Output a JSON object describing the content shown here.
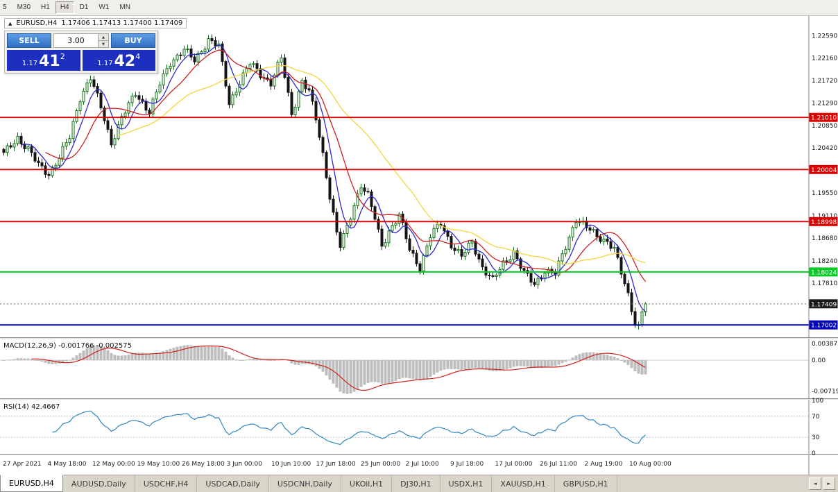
{
  "toolbar": {
    "timeframes": [
      "5",
      "M30",
      "H1",
      "H4",
      "D1",
      "W1",
      "MN"
    ],
    "active": "H4"
  },
  "symbol_overlay": {
    "symbol": "EURUSD,H4",
    "ohlc": "1.17406 1.17413 1.17400 1.17409"
  },
  "trade_panel": {
    "sell_label": "SELL",
    "buy_label": "BUY",
    "lot_value": "3.00",
    "sell_price": {
      "small": "1.17",
      "big": "41",
      "sup": "2"
    },
    "buy_price": {
      "small": "1.17",
      "big": "42",
      "sup": "4"
    }
  },
  "chart_data": {
    "type": "candlestick",
    "symbol": "EURUSD",
    "timeframe": "H4",
    "price_range": [
      1.1679,
      1.2297
    ],
    "y_axis_ticks": [
      "1.22590",
      "1.22160",
      "1.21720",
      "1.21290",
      "1.20850",
      "1.20420",
      "1.19550",
      "1.19110",
      "1.18680",
      "1.18240",
      "1.17810"
    ],
    "num_candles": 186,
    "last_close": 1.17409,
    "price_path_anchors": [
      [
        0,
        1.203
      ],
      [
        4,
        1.2062
      ],
      [
        7,
        1.204
      ],
      [
        10,
        1.2008
      ],
      [
        13,
        1.1992
      ],
      [
        16,
        1.2025
      ],
      [
        19,
        1.2062
      ],
      [
        22,
        1.214
      ],
      [
        25,
        1.2178
      ],
      [
        28,
        1.212
      ],
      [
        31,
        1.2052
      ],
      [
        34,
        1.21
      ],
      [
        38,
        1.2148
      ],
      [
        42,
        1.2112
      ],
      [
        45,
        1.2165
      ],
      [
        48,
        1.2208
      ],
      [
        52,
        1.2232
      ],
      [
        55,
        1.221
      ],
      [
        59,
        1.2252
      ],
      [
        62,
        1.2238
      ],
      [
        65,
        1.2128
      ],
      [
        68,
        1.217
      ],
      [
        71,
        1.2205
      ],
      [
        74,
        1.2185
      ],
      [
        77,
        1.2168
      ],
      [
        80,
        1.2215
      ],
      [
        83,
        1.2108
      ],
      [
        86,
        1.2172
      ],
      [
        88,
        1.215
      ],
      [
        90,
        1.2098
      ],
      [
        92,
        1.203
      ],
      [
        94,
        1.195
      ],
      [
        96,
        1.1878
      ],
      [
        97,
        1.1852
      ],
      [
        99,
        1.1888
      ],
      [
        101,
        1.1932
      ],
      [
        103,
        1.1972
      ],
      [
        105,
        1.195
      ],
      [
        107,
        1.1905
      ],
      [
        109,
        1.1852
      ],
      [
        111,
        1.1882
      ],
      [
        114,
        1.1912
      ],
      [
        117,
        1.1845
      ],
      [
        120,
        1.1812
      ],
      [
        123,
        1.1872
      ],
      [
        126,
        1.1896
      ],
      [
        129,
        1.1856
      ],
      [
        132,
        1.1832
      ],
      [
        135,
        1.186
      ],
      [
        138,
        1.1812
      ],
      [
        141,
        1.1786
      ],
      [
        144,
        1.1818
      ],
      [
        147,
        1.1842
      ],
      [
        150,
        1.18
      ],
      [
        153,
        1.1778
      ],
      [
        156,
        1.1806
      ],
      [
        159,
        1.1798
      ],
      [
        162,
        1.1852
      ],
      [
        165,
        1.1906
      ],
      [
        168,
        1.1888
      ],
      [
        171,
        1.1872
      ],
      [
        174,
        1.1862
      ],
      [
        176,
        1.1846
      ],
      [
        178,
        1.18
      ],
      [
        180,
        1.1758
      ],
      [
        182,
        1.1706
      ],
      [
        183,
        1.1697
      ],
      [
        184,
        1.1726
      ],
      [
        185,
        1.17409
      ]
    ],
    "hlines": [
      {
        "price": 1.2101,
        "label": "1.21010",
        "color": "#dd0000",
        "width": 1.8
      },
      {
        "price": 1.20004,
        "label": "1.20004",
        "color": "#dd0000",
        "width": 1.8
      },
      {
        "price": 1.18998,
        "label": "1.18998",
        "color": "#dd0000",
        "width": 1.8
      },
      {
        "price": 1.18024,
        "label": "1.18024",
        "color": "#00cc22",
        "width": 2
      },
      {
        "price": 1.17002,
        "label": "1.17002",
        "color": "#0000bb",
        "width": 2
      }
    ],
    "current_price": {
      "value": 1.17409,
      "label": "1.17409",
      "color": "#1a1a1a"
    },
    "moving_averages": [
      {
        "name": "fast-ma-blue",
        "period": 6,
        "color": "#2a2ad0"
      },
      {
        "name": "mid-ma-red",
        "period": 13,
        "color": "#cc2020"
      },
      {
        "name": "slow-ma-yellow",
        "period": 34,
        "color": "#f2d63c"
      }
    ],
    "x_labels": [
      "27 Apr 2021",
      "4 May 18:00",
      "12 May 00:00",
      "19 May 10:00",
      "26 May 18:00",
      "3 Jun 00:00",
      "10 Jun 10:00",
      "17 Jun 18:00",
      "25 Jun 00:00",
      "2 Jul 10:00",
      "9 Jul 18:00",
      "17 Jul 00:00",
      "26 Jul 11:00",
      "2 Aug 19:00",
      "10 Aug 00:00"
    ],
    "macd": {
      "label": "MACD(12,26,9) -0.001766 -0.002575",
      "params": [
        12,
        26,
        9
      ],
      "value": -0.001766,
      "signal_value": -0.002575,
      "axis_labels": [
        "0.003873",
        "0.00",
        "-0.00719"
      ],
      "hist_color": "#bdbdbd",
      "signal_color": "#d02020"
    },
    "rsi": {
      "label": "RSI(14) 42.4667",
      "period": 14,
      "value": 42.4667,
      "axis_labels": [
        "100",
        "70",
        "30",
        "0"
      ],
      "levels": [
        70,
        30
      ],
      "color": "#2e86c0"
    }
  },
  "tabs": {
    "items": [
      {
        "label": "EURUSD,H4"
      },
      {
        "label": "AUDUSD,Daily"
      },
      {
        "label": "USDCHF,H4"
      },
      {
        "label": "USDCAD,Daily"
      },
      {
        "label": "USDCNH,Daily"
      },
      {
        "label": "UKOil,H1"
      },
      {
        "label": "DJ30,H1"
      },
      {
        "label": "USDX,H1"
      },
      {
        "label": "XAUUSD,H1"
      },
      {
        "label": "GBPUSD,H1"
      }
    ],
    "active_index": 0,
    "scroll_left_icon": "◄",
    "scroll_right_icon": "►"
  }
}
